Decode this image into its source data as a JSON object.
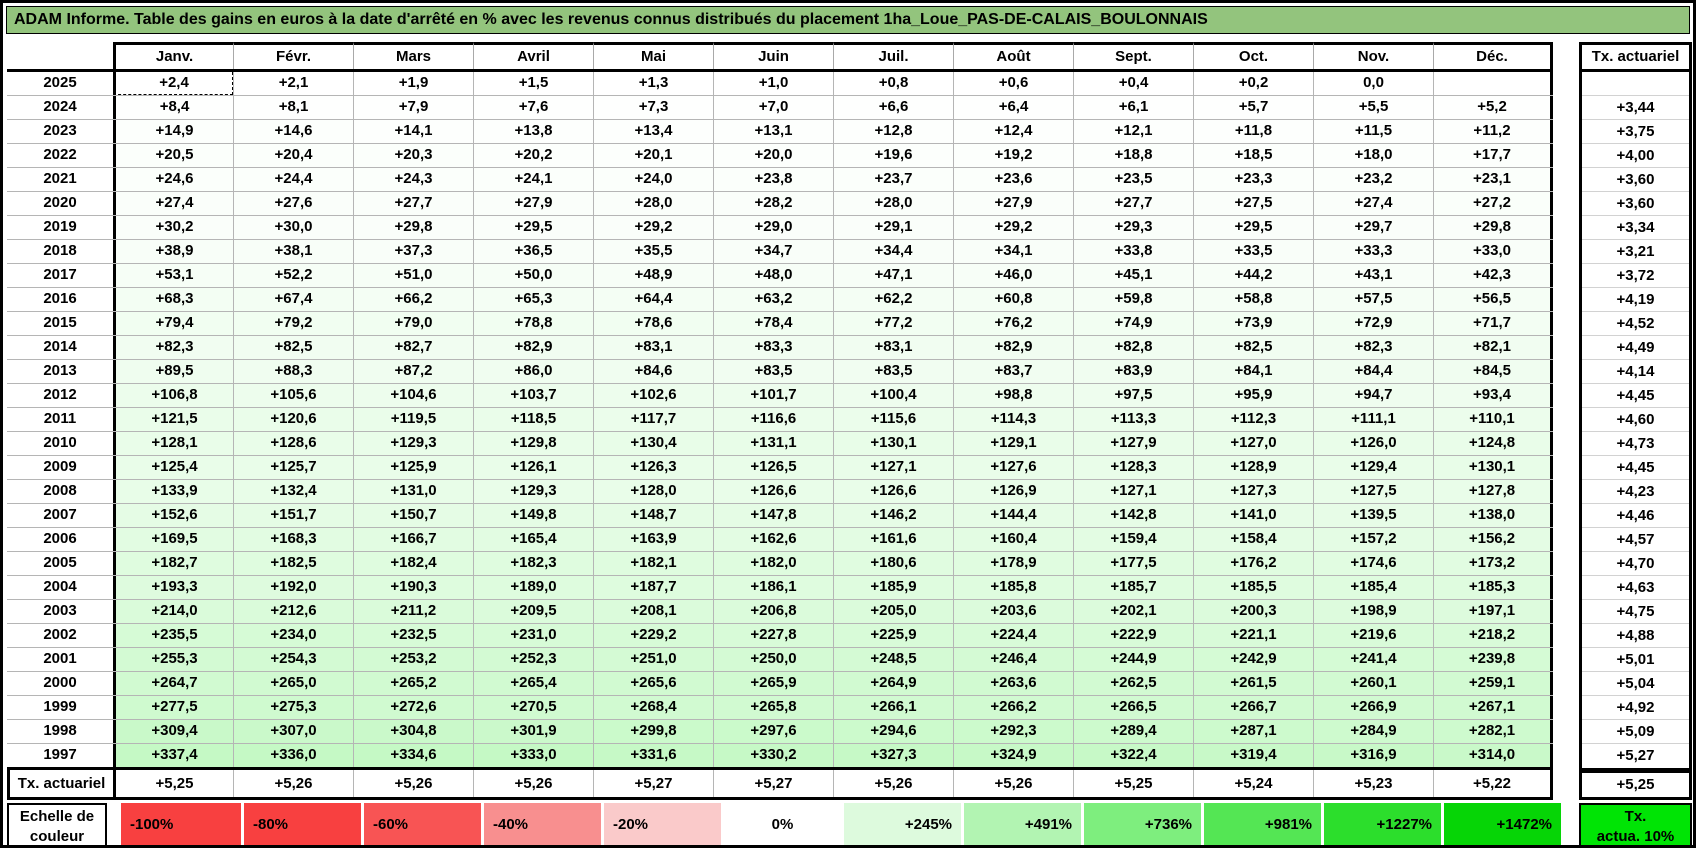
{
  "title": "ADAM Informe. Table des gains en euros à la date d'arrêté en % avec les revenus connus distribués du placement 1ha_Loue_PAS-DE-CALAIS_BOULONNAIS",
  "table": {
    "month_headers": [
      "Janv.",
      "Févr.",
      "Mars",
      "Avril",
      "Mai",
      "Juin",
      "Juil.",
      "Août",
      "Sept.",
      "Oct.",
      "Nov.",
      "Déc."
    ],
    "actuarial_header": "Tx. actuariel",
    "rows": [
      {
        "year": "2025",
        "values": [
          "+2,4",
          "+2,1",
          "+1,9",
          "+1,5",
          "+1,3",
          "+1,0",
          "+0,8",
          "+0,6",
          "+0,4",
          "+0,2",
          "0,0",
          ""
        ],
        "actuarial": ""
      },
      {
        "year": "2024",
        "values": [
          "+8,4",
          "+8,1",
          "+7,9",
          "+7,6",
          "+7,3",
          "+7,0",
          "+6,6",
          "+6,4",
          "+6,1",
          "+5,7",
          "+5,5",
          "+5,2"
        ],
        "actuarial": "+3,44"
      },
      {
        "year": "2023",
        "values": [
          "+14,9",
          "+14,6",
          "+14,1",
          "+13,8",
          "+13,4",
          "+13,1",
          "+12,8",
          "+12,4",
          "+12,1",
          "+11,8",
          "+11,5",
          "+11,2"
        ],
        "actuarial": "+3,75"
      },
      {
        "year": "2022",
        "values": [
          "+20,5",
          "+20,4",
          "+20,3",
          "+20,2",
          "+20,1",
          "+20,0",
          "+19,6",
          "+19,2",
          "+18,8",
          "+18,5",
          "+18,0",
          "+17,7"
        ],
        "actuarial": "+4,00"
      },
      {
        "year": "2021",
        "values": [
          "+24,6",
          "+24,4",
          "+24,3",
          "+24,1",
          "+24,0",
          "+23,8",
          "+23,7",
          "+23,6",
          "+23,5",
          "+23,3",
          "+23,2",
          "+23,1"
        ],
        "actuarial": "+3,60"
      },
      {
        "year": "2020",
        "values": [
          "+27,4",
          "+27,6",
          "+27,7",
          "+27,9",
          "+28,0",
          "+28,2",
          "+28,0",
          "+27,9",
          "+27,7",
          "+27,5",
          "+27,4",
          "+27,2"
        ],
        "actuarial": "+3,60"
      },
      {
        "year": "2019",
        "values": [
          "+30,2",
          "+30,0",
          "+29,8",
          "+29,5",
          "+29,2",
          "+29,0",
          "+29,1",
          "+29,2",
          "+29,3",
          "+29,5",
          "+29,7",
          "+29,8"
        ],
        "actuarial": "+3,34"
      },
      {
        "year": "2018",
        "values": [
          "+38,9",
          "+38,1",
          "+37,3",
          "+36,5",
          "+35,5",
          "+34,7",
          "+34,4",
          "+34,1",
          "+33,8",
          "+33,5",
          "+33,3",
          "+33,0"
        ],
        "actuarial": "+3,21"
      },
      {
        "year": "2017",
        "values": [
          "+53,1",
          "+52,2",
          "+51,0",
          "+50,0",
          "+48,9",
          "+48,0",
          "+47,1",
          "+46,0",
          "+45,1",
          "+44,2",
          "+43,1",
          "+42,3"
        ],
        "actuarial": "+3,72"
      },
      {
        "year": "2016",
        "values": [
          "+68,3",
          "+67,4",
          "+66,2",
          "+65,3",
          "+64,4",
          "+63,2",
          "+62,2",
          "+60,8",
          "+59,8",
          "+58,8",
          "+57,5",
          "+56,5"
        ],
        "actuarial": "+4,19"
      },
      {
        "year": "2015",
        "values": [
          "+79,4",
          "+79,2",
          "+79,0",
          "+78,8",
          "+78,6",
          "+78,4",
          "+77,2",
          "+76,2",
          "+74,9",
          "+73,9",
          "+72,9",
          "+71,7"
        ],
        "actuarial": "+4,52"
      },
      {
        "year": "2014",
        "values": [
          "+82,3",
          "+82,5",
          "+82,7",
          "+82,9",
          "+83,1",
          "+83,3",
          "+83,1",
          "+82,9",
          "+82,8",
          "+82,5",
          "+82,3",
          "+82,1"
        ],
        "actuarial": "+4,49"
      },
      {
        "year": "2013",
        "values": [
          "+89,5",
          "+88,3",
          "+87,2",
          "+86,0",
          "+84,6",
          "+83,5",
          "+83,5",
          "+83,7",
          "+83,9",
          "+84,1",
          "+84,4",
          "+84,5"
        ],
        "actuarial": "+4,14"
      },
      {
        "year": "2012",
        "values": [
          "+106,8",
          "+105,6",
          "+104,6",
          "+103,7",
          "+102,6",
          "+101,7",
          "+100,4",
          "+98,8",
          "+97,5",
          "+95,9",
          "+94,7",
          "+93,4"
        ],
        "actuarial": "+4,45"
      },
      {
        "year": "2011",
        "values": [
          "+121,5",
          "+120,6",
          "+119,5",
          "+118,5",
          "+117,7",
          "+116,6",
          "+115,6",
          "+114,3",
          "+113,3",
          "+112,3",
          "+111,1",
          "+110,1"
        ],
        "actuarial": "+4,60"
      },
      {
        "year": "2010",
        "values": [
          "+128,1",
          "+128,6",
          "+129,3",
          "+129,8",
          "+130,4",
          "+131,1",
          "+130,1",
          "+129,1",
          "+127,9",
          "+127,0",
          "+126,0",
          "+124,8"
        ],
        "actuarial": "+4,73"
      },
      {
        "year": "2009",
        "values": [
          "+125,4",
          "+125,7",
          "+125,9",
          "+126,1",
          "+126,3",
          "+126,5",
          "+127,1",
          "+127,6",
          "+128,3",
          "+128,9",
          "+129,4",
          "+130,1"
        ],
        "actuarial": "+4,45"
      },
      {
        "year": "2008",
        "values": [
          "+133,9",
          "+132,4",
          "+131,0",
          "+129,3",
          "+128,0",
          "+126,6",
          "+126,6",
          "+126,9",
          "+127,1",
          "+127,3",
          "+127,5",
          "+127,8"
        ],
        "actuarial": "+4,23"
      },
      {
        "year": "2007",
        "values": [
          "+152,6",
          "+151,7",
          "+150,7",
          "+149,8",
          "+148,7",
          "+147,8",
          "+146,2",
          "+144,4",
          "+142,8",
          "+141,0",
          "+139,5",
          "+138,0"
        ],
        "actuarial": "+4,46"
      },
      {
        "year": "2006",
        "values": [
          "+169,5",
          "+168,3",
          "+166,7",
          "+165,4",
          "+163,9",
          "+162,6",
          "+161,6",
          "+160,4",
          "+159,4",
          "+158,4",
          "+157,2",
          "+156,2"
        ],
        "actuarial": "+4,57"
      },
      {
        "year": "2005",
        "values": [
          "+182,7",
          "+182,5",
          "+182,4",
          "+182,3",
          "+182,1",
          "+182,0",
          "+180,6",
          "+178,9",
          "+177,5",
          "+176,2",
          "+174,6",
          "+173,2"
        ],
        "actuarial": "+4,70"
      },
      {
        "year": "2004",
        "values": [
          "+193,3",
          "+192,0",
          "+190,3",
          "+189,0",
          "+187,7",
          "+186,1",
          "+185,9",
          "+185,8",
          "+185,7",
          "+185,5",
          "+185,4",
          "+185,3"
        ],
        "actuarial": "+4,63"
      },
      {
        "year": "2003",
        "values": [
          "+214,0",
          "+212,6",
          "+211,2",
          "+209,5",
          "+208,1",
          "+206,8",
          "+205,0",
          "+203,6",
          "+202,1",
          "+200,3",
          "+198,9",
          "+197,1"
        ],
        "actuarial": "+4,75"
      },
      {
        "year": "2002",
        "values": [
          "+235,5",
          "+234,0",
          "+232,5",
          "+231,0",
          "+229,2",
          "+227,8",
          "+225,9",
          "+224,4",
          "+222,9",
          "+221,1",
          "+219,6",
          "+218,2"
        ],
        "actuarial": "+4,88"
      },
      {
        "year": "2001",
        "values": [
          "+255,3",
          "+254,3",
          "+253,2",
          "+252,3",
          "+251,0",
          "+250,0",
          "+248,5",
          "+246,4",
          "+244,9",
          "+242,9",
          "+241,4",
          "+239,8"
        ],
        "actuarial": "+5,01"
      },
      {
        "year": "2000",
        "values": [
          "+264,7",
          "+265,0",
          "+265,2",
          "+265,4",
          "+265,6",
          "+265,9",
          "+264,9",
          "+263,6",
          "+262,5",
          "+261,5",
          "+260,1",
          "+259,1"
        ],
        "actuarial": "+5,04"
      },
      {
        "year": "1999",
        "values": [
          "+277,5",
          "+275,3",
          "+272,6",
          "+270,5",
          "+268,4",
          "+265,8",
          "+266,1",
          "+266,2",
          "+266,5",
          "+266,7",
          "+266,9",
          "+267,1"
        ],
        "actuarial": "+4,92"
      },
      {
        "year": "1998",
        "values": [
          "+309,4",
          "+307,0",
          "+304,8",
          "+301,9",
          "+299,8",
          "+297,6",
          "+294,6",
          "+292,3",
          "+289,4",
          "+287,1",
          "+284,9",
          "+282,1"
        ],
        "actuarial": "+5,09"
      },
      {
        "year": "1997",
        "values": [
          "+337,4",
          "+336,0",
          "+334,6",
          "+333,0",
          "+331,6",
          "+330,2",
          "+327,3",
          "+324,9",
          "+322,4",
          "+319,4",
          "+316,9",
          "+314,0"
        ],
        "actuarial": "+5,27"
      }
    ],
    "footer": {
      "label": "Tx. actuariel",
      "values": [
        "+5,25",
        "+5,26",
        "+5,26",
        "+5,26",
        "+5,27",
        "+5,27",
        "+5,26",
        "+5,26",
        "+5,25",
        "+5,24",
        "+5,23",
        "+5,22"
      ],
      "actuarial": "+5,25"
    }
  },
  "color_scale": {
    "label": "Echelle de couleur",
    "stops": [
      {
        "label": "-100%",
        "color": "#f84040",
        "align": "left"
      },
      {
        "label": "-80%",
        "color": "#f84040",
        "align": "left"
      },
      {
        "label": "-60%",
        "color": "#f85454",
        "align": "left"
      },
      {
        "label": "-40%",
        "color": "#f88f8f",
        "align": "left"
      },
      {
        "label": "-20%",
        "color": "#facaca",
        "align": "left"
      },
      {
        "label": "0%",
        "color": "#ffffff",
        "align": "center"
      },
      {
        "label": "+245%",
        "color": "#ddfadd",
        "align": "right"
      },
      {
        "label": "+491%",
        "color": "#b2f4b2",
        "align": "right"
      },
      {
        "label": "+736%",
        "color": "#7eee7e",
        "align": "right"
      },
      {
        "label": "+981%",
        "color": "#54e654",
        "align": "right"
      },
      {
        "label": "+1227%",
        "color": "#2cde2c",
        "align": "right"
      },
      {
        "label": "+1472%",
        "color": "#06d506",
        "align": "right"
      }
    ],
    "actuarial_box": {
      "line1": "Tx.",
      "line2": "actua. 10%",
      "color": "#00e405"
    }
  },
  "colors": {
    "title_bg": "#93c47d",
    "grid_line": "#b5b5b5",
    "max_green": "#00e400"
  },
  "shading": {
    "min_value_pct": 0,
    "max_value_pct": 1472
  }
}
